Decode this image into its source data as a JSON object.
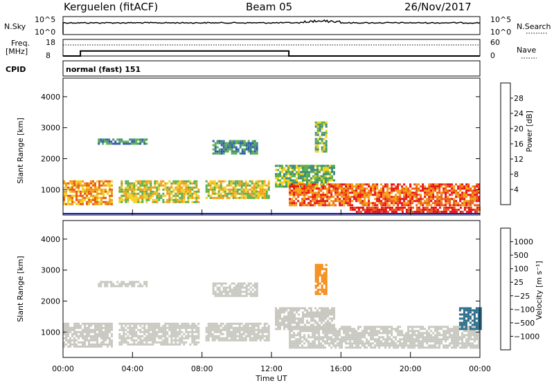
{
  "header": {
    "station": "Kerguelen (fitACF)",
    "beam": "Beam 05",
    "date": "26/Nov/2017"
  },
  "labels": {
    "nsky": "N.Sky",
    "nsearch": "N.Search",
    "freq_line1": "Freq.",
    "freq_line2": "[MHz]",
    "nave": "Nave",
    "cpid": "CPID",
    "cpid_value": "normal (fast) 151",
    "nsky_tick_top": "10^5",
    "nsky_tick_bottom": "10^0",
    "nsearch_tick_top": "10^5",
    "nsearch_tick_bottom": "10^0",
    "freq_tick_top": "18",
    "freq_tick_bottom": "8",
    "nave_tick_top": "60",
    "nave_tick_bottom": "0"
  },
  "chart_data": [
    {
      "type": "line",
      "panel": "noise",
      "series": [
        {
          "name": "N.Sky",
          "style": "solid"
        },
        {
          "name": "N.Search",
          "style": "dotted"
        }
      ]
    },
    {
      "type": "line",
      "panel": "frequency",
      "series": [
        {
          "name": "Freq.",
          "unit": "MHz",
          "style": "solid",
          "x": [
            "00:00",
            "01:00",
            "01:00",
            "13:00",
            "13:00",
            "24:00"
          ],
          "y": [
            8,
            8,
            11,
            11,
            8,
            8
          ]
        },
        {
          "name": "Nave",
          "style": "dotted",
          "x": [
            "00:00",
            "24:00"
          ],
          "y": [
            40,
            40
          ]
        }
      ],
      "ylim_left": [
        8,
        18
      ],
      "ylim_right": [
        0,
        60
      ]
    },
    {
      "type": "heatmap",
      "panel": "power",
      "ylabel": "Slant Range [km]",
      "yticks": [
        "1000",
        "2000",
        "3000",
        "4000"
      ],
      "ylim": [
        180,
        4600
      ],
      "colorbar": {
        "label": "Power [dB]",
        "ticks": [
          "4",
          "8",
          "12",
          "16",
          "20",
          "24",
          "28"
        ],
        "colors": [
          "#1018d8",
          "#2f55b8",
          "#3f8a78",
          "#58b048",
          "#f0d020",
          "#f59a10",
          "#ea5a10",
          "#e81010"
        ]
      },
      "echo_regions": [
        {
          "t0": 0.0,
          "t1": 2.8,
          "r0": 500,
          "r1": 1300,
          "level": 5
        },
        {
          "t0": 3.2,
          "t1": 7.8,
          "r0": 600,
          "r1": 1300,
          "level": 4
        },
        {
          "t0": 2.0,
          "t1": 4.8,
          "r0": 2450,
          "r1": 2650,
          "level": 2
        },
        {
          "t0": 8.6,
          "t1": 11.2,
          "r0": 2150,
          "r1": 2600,
          "level": 2
        },
        {
          "t0": 8.2,
          "t1": 11.8,
          "r0": 700,
          "r1": 1300,
          "level": 4
        },
        {
          "t0": 12.2,
          "t1": 15.6,
          "r0": 1100,
          "r1": 1800,
          "level": 3
        },
        {
          "t0": 13.0,
          "t1": 24.0,
          "r0": 500,
          "r1": 1200,
          "level": 6
        },
        {
          "t0": 16.5,
          "t1": 24.0,
          "r0": 300,
          "r1": 450,
          "level": 7
        },
        {
          "t0": 14.5,
          "t1": 15.2,
          "r0": 2200,
          "r1": 3200,
          "level": 3
        }
      ]
    },
    {
      "type": "heatmap",
      "panel": "velocity",
      "ylabel": "Slant Range [km]",
      "yticks": [
        "1000",
        "2000",
        "3000",
        "4000"
      ],
      "ylim": [
        180,
        4600
      ],
      "xlabel": "Time UT",
      "xticks": [
        "00:00",
        "04:00",
        "08:00",
        "12:00",
        "16:00",
        "20:00",
        "00:00"
      ],
      "xlim_hours": [
        0,
        24
      ],
      "colorbar": {
        "label": "Velocity [m s⁻¹]",
        "ticks": [
          "1000",
          "500",
          "100",
          "25",
          "−25",
          "−100",
          "−500",
          "−1000"
        ],
        "colors": [
          "#2030b0",
          "#2e6e8a",
          "#3a9450",
          "#78d048",
          "#c8c8c0",
          "#f5b818",
          "#f58a10",
          "#ea5010",
          "#e01010"
        ]
      },
      "echo_regions": [
        {
          "t0": 0.0,
          "t1": 2.8,
          "r0": 500,
          "r1": 1300,
          "level": 4
        },
        {
          "t0": 3.2,
          "t1": 7.8,
          "r0": 600,
          "r1": 1300,
          "level": 4
        },
        {
          "t0": 2.0,
          "t1": 4.8,
          "r0": 2450,
          "r1": 2650,
          "level": 4
        },
        {
          "t0": 8.6,
          "t1": 11.2,
          "r0": 2150,
          "r1": 2600,
          "level": 4
        },
        {
          "t0": 8.2,
          "t1": 11.8,
          "r0": 700,
          "r1": 1300,
          "level": 4
        },
        {
          "t0": 12.2,
          "t1": 15.6,
          "r0": 1100,
          "r1": 1800,
          "level": 4
        },
        {
          "t0": 13.0,
          "t1": 24.0,
          "r0": 500,
          "r1": 1200,
          "level": 4
        },
        {
          "t0": 14.5,
          "t1": 15.2,
          "r0": 2200,
          "r1": 3200,
          "level": 6
        },
        {
          "t0": 22.8,
          "t1": 24.0,
          "r0": 1100,
          "r1": 1800,
          "level": 1
        }
      ]
    }
  ]
}
